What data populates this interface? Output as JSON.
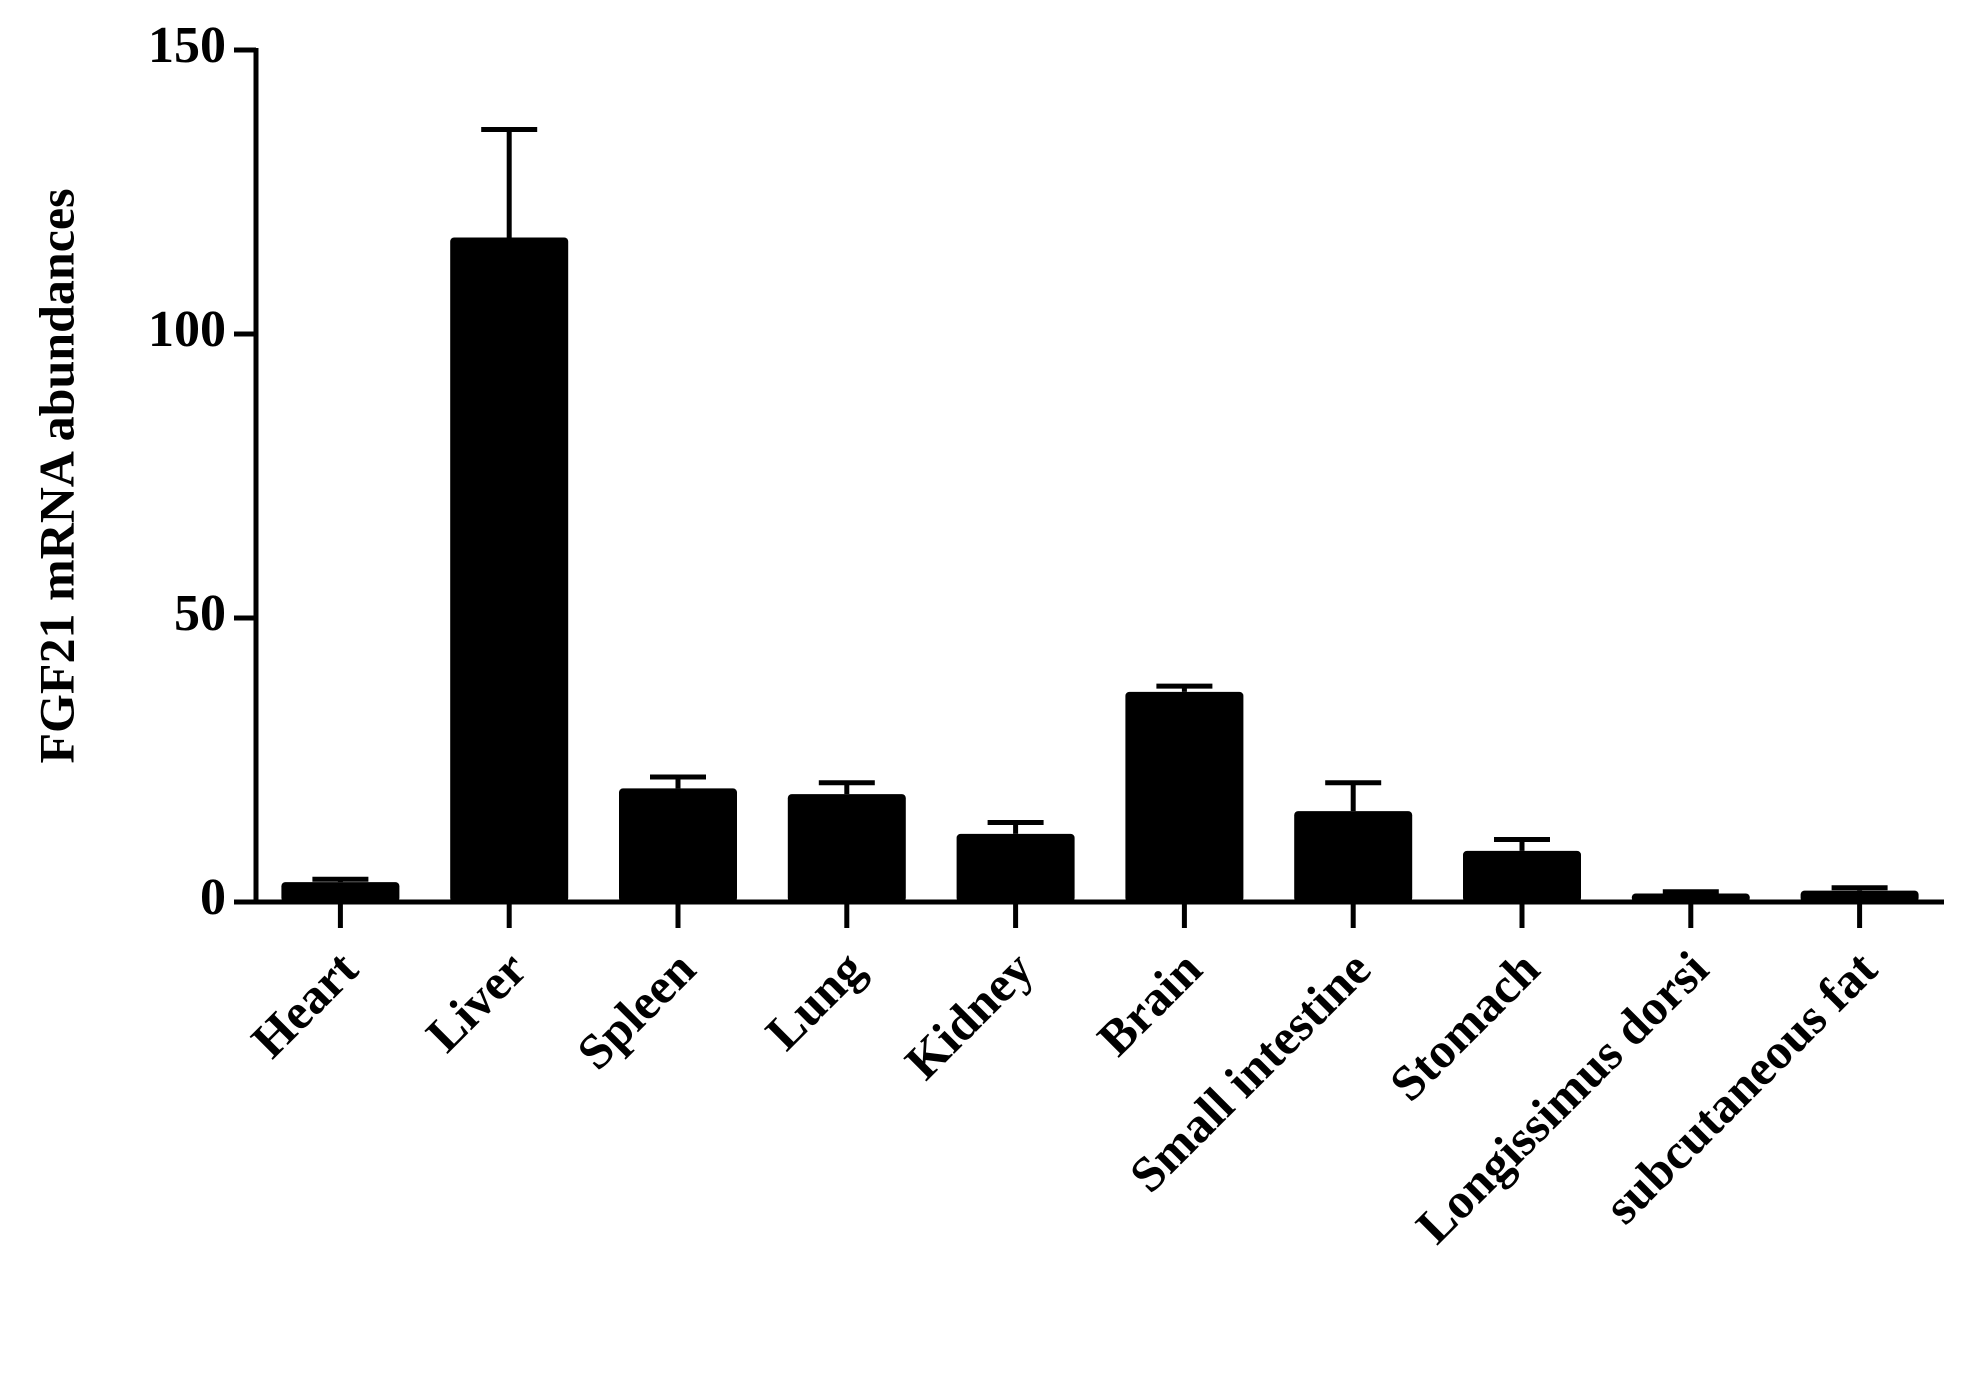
{
  "chart_data": {
    "type": "bar",
    "y_label": "FGF21 mRNA abundances",
    "categories": [
      "Heart",
      "Liver",
      "Spleen",
      "Lung",
      "Kidney",
      "Brain",
      "Small intestine",
      "Stomach",
      "Longissimus dorsi",
      "subcutaneous fat"
    ],
    "values": [
      3.5,
      117,
      20,
      19,
      12,
      37,
      16,
      9,
      1.5,
      2
    ],
    "errors": [
      0.5,
      19,
      2,
      2,
      2,
      1,
      5,
      2,
      0.3,
      0.5
    ],
    "color": "#000000",
    "ylim": [
      0,
      150
    ],
    "yticks": [
      0,
      50,
      100,
      150
    ],
    "grid": false
  }
}
